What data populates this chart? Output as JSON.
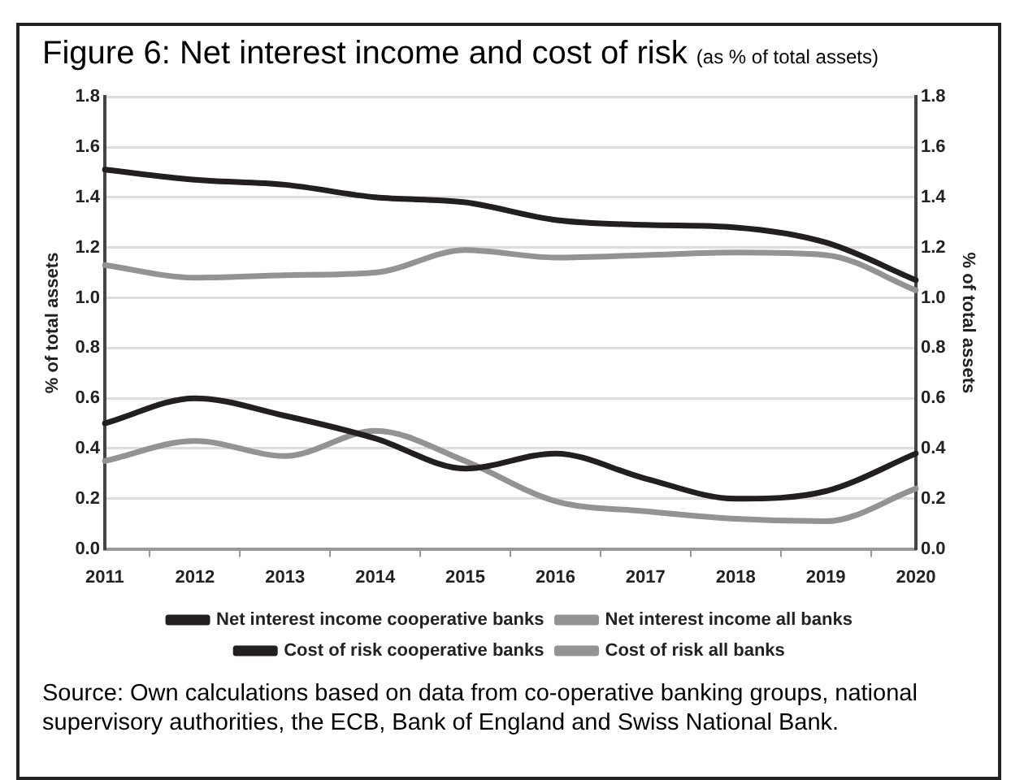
{
  "chart_data": {
    "type": "line",
    "title": "Figure 6: Net interest income and cost of risk",
    "subtitle": "(as % of total assets)",
    "ylabel": "% of total assets",
    "y2label": "% of total assets",
    "categories": [
      "2011",
      "2012",
      "2013",
      "2014",
      "2015",
      "2016",
      "2017",
      "2018",
      "2019",
      "2020"
    ],
    "series": [
      {
        "name": "Net interest income cooperative banks",
        "color": "#231f20",
        "values": [
          1.51,
          1.47,
          1.45,
          1.4,
          1.38,
          1.31,
          1.29,
          1.28,
          1.22,
          1.07
        ]
      },
      {
        "name": "Net interest income all banks",
        "color": "#939393",
        "values": [
          1.13,
          1.08,
          1.09,
          1.1,
          1.19,
          1.16,
          1.17,
          1.18,
          1.17,
          1.03
        ]
      },
      {
        "name": "Cost of risk cooperative banks",
        "color": "#231f20",
        "values": [
          0.5,
          0.6,
          0.53,
          0.44,
          0.32,
          0.38,
          0.28,
          0.2,
          0.23,
          0.38
        ]
      },
      {
        "name": "Cost of risk all banks",
        "color": "#939393",
        "values": [
          0.35,
          0.43,
          0.37,
          0.47,
          0.35,
          0.19,
          0.15,
          0.12,
          0.11,
          0.24
        ]
      }
    ],
    "ylim": [
      0,
      1.8
    ],
    "yticks": [
      {
        "value": 0,
        "label": "0.0"
      },
      0.2,
      0.4,
      0.6,
      0.8,
      {
        "value": 1,
        "label": "1.0"
      },
      1.2,
      1.4,
      1.6,
      1.8
    ],
    "y2lim": [
      0,
      1.8
    ],
    "y2ticks": [
      {
        "value": 0,
        "label": "0.0"
      },
      0.2,
      0.4,
      0.6,
      0.8,
      {
        "value": 1,
        "label": "1.0"
      },
      1.2,
      1.4,
      1.6,
      1.8
    ],
    "grid": "y",
    "legend": "bottom",
    "marker": "none",
    "line_style": "solid",
    "annotations": [
      "Source: Own calculations based on data from co-operative banking groups, national supervisory authorities, the ECB, Bank of England and Swiss National Bank."
    ]
  }
}
